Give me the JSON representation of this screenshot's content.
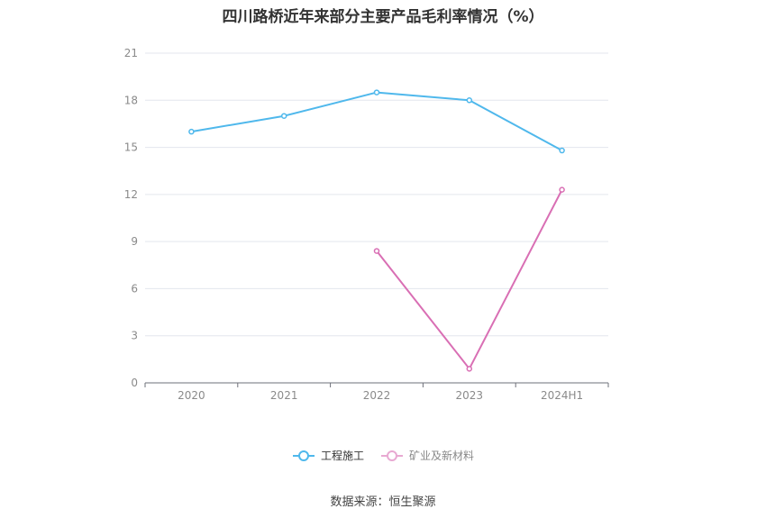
{
  "chart_data": {
    "type": "line",
    "title": "四川路桥近年来部分主要产品毛利率情况（%）",
    "categories": [
      "2020",
      "2021",
      "2022",
      "2023",
      "2024H1"
    ],
    "ylim": [
      0,
      21
    ],
    "yticks": [
      0,
      3,
      6,
      9,
      12,
      15,
      18,
      21
    ],
    "grid": true,
    "legend_position": "bottom-center",
    "series": [
      {
        "name": "工程施工",
        "color": "#4fb8ec",
        "values": [
          16.0,
          17.0,
          18.5,
          18.0,
          14.8
        ]
      },
      {
        "name": "矿业及新材料",
        "color": "#d96fb4",
        "values": [
          null,
          null,
          8.4,
          0.9,
          12.3
        ]
      }
    ]
  },
  "source": "数据来源：恒生聚源"
}
